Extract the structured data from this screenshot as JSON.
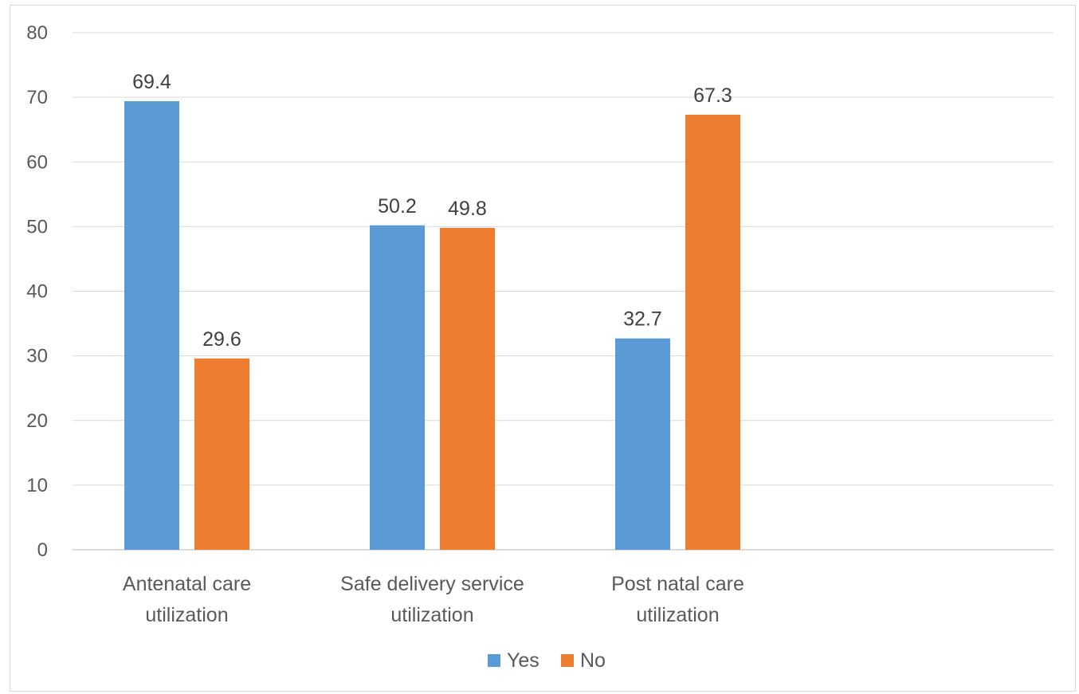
{
  "chart_data": {
    "type": "bar",
    "categories": [
      [
        "Antenatal care",
        "utilization"
      ],
      [
        "Safe delivery service",
        "utilization"
      ],
      [
        "Post natal care",
        "utilization"
      ]
    ],
    "series": [
      {
        "name": "Yes",
        "color": "#5b9bd5",
        "values": [
          69.4,
          50.2,
          32.7
        ]
      },
      {
        "name": "No",
        "color": "#ed7d31",
        "values": [
          29.6,
          49.8,
          67.3
        ]
      }
    ],
    "data_labels": [
      [
        "69.4",
        "50.2",
        "32.7"
      ],
      [
        "29.6",
        "49.8",
        "67.3"
      ]
    ],
    "yticks": [
      "0",
      "10",
      "20",
      "30",
      "40",
      "50",
      "60",
      "70",
      "80"
    ],
    "ylim": [
      0,
      80
    ],
    "grid": true,
    "legend_position": "bottom"
  }
}
